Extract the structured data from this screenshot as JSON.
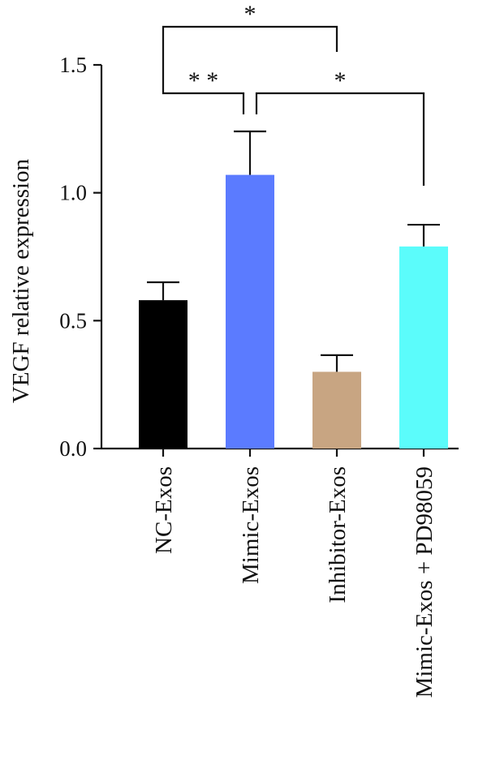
{
  "chart_data": {
    "type": "bar",
    "title": "",
    "xlabel": "",
    "ylabel": "VEGF relative expression",
    "ylim": [
      0,
      1.5
    ],
    "yticks": [
      "0.0",
      "0.5",
      "1.0",
      "1.5"
    ],
    "categories": [
      "NC-Exos",
      "Mimic-Exos",
      "Inhibitor-Exos",
      "Mimic-Exos + PD98059"
    ],
    "values": [
      0.58,
      1.07,
      0.3,
      0.79
    ],
    "errors": [
      0.07,
      0.17,
      0.065,
      0.085
    ],
    "colors": [
      "#000000",
      "#5b7bff",
      "#c8a582",
      "#5bfcfb"
    ],
    "grid": false,
    "significance": [
      {
        "from": 0,
        "to": 2,
        "label": "*"
      },
      {
        "from": 0,
        "to": 1,
        "label": "* *"
      },
      {
        "from": 1,
        "to": 3,
        "label": "*"
      }
    ]
  }
}
